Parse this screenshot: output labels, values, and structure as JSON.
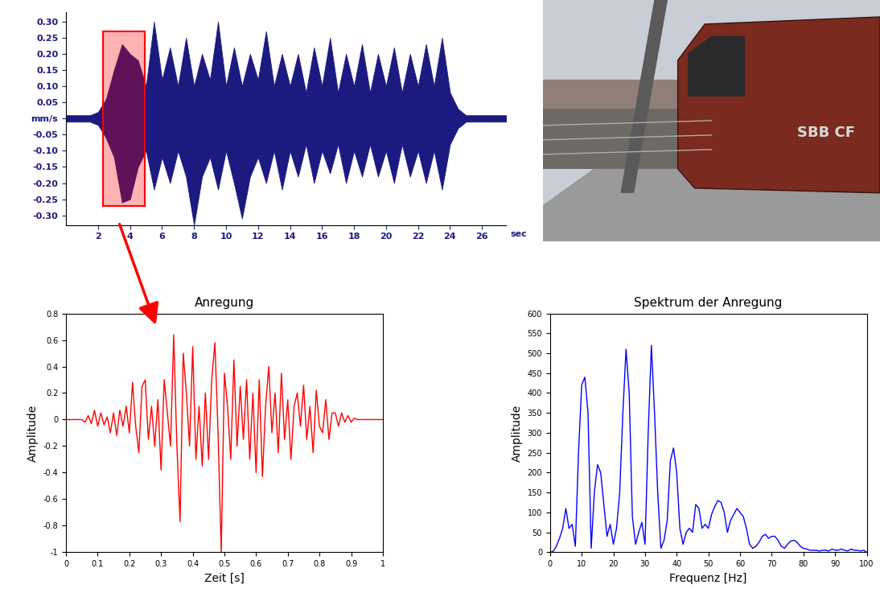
{
  "chart_data": [
    {
      "type": "area",
      "color": "#1a1a80",
      "x": [
        0,
        0.5,
        1,
        1.5,
        2,
        2.5,
        3,
        3.5,
        4,
        4.5,
        5,
        5.5,
        6,
        6.5,
        7,
        7.5,
        8,
        8.5,
        9,
        9.5,
        10,
        10.5,
        11,
        11.5,
        12,
        12.5,
        13,
        13.5,
        14,
        14.5,
        15,
        15.5,
        16,
        16.5,
        17,
        17.5,
        18,
        18.5,
        19,
        19.5,
        20,
        20.5,
        21,
        21.5,
        22,
        22.5,
        23,
        23.5,
        24,
        24.5,
        25,
        25.5,
        26,
        26.5,
        27,
        27.5
      ],
      "values_max": [
        0.01,
        0.01,
        0.01,
        0.01,
        0.02,
        0.06,
        0.15,
        0.23,
        0.2,
        0.18,
        0.1,
        0.3,
        0.12,
        0.22,
        0.1,
        0.25,
        0.1,
        0.2,
        0.12,
        0.3,
        0.1,
        0.22,
        0.1,
        0.2,
        0.12,
        0.27,
        0.1,
        0.2,
        0.1,
        0.2,
        0.08,
        0.22,
        0.1,
        0.25,
        0.08,
        0.2,
        0.1,
        0.23,
        0.08,
        0.2,
        0.1,
        0.22,
        0.08,
        0.2,
        0.1,
        0.23,
        0.1,
        0.25,
        0.08,
        0.03,
        0.01,
        0.01,
        0.01,
        0.01,
        0.01,
        0.01
      ],
      "values_min": [
        -0.01,
        -0.01,
        -0.01,
        -0.01,
        -0.02,
        -0.06,
        -0.12,
        -0.26,
        -0.25,
        -0.15,
        -0.1,
        -0.22,
        -0.12,
        -0.2,
        -0.1,
        -0.18,
        -0.33,
        -0.18,
        -0.12,
        -0.22,
        -0.1,
        -0.2,
        -0.31,
        -0.18,
        -0.12,
        -0.2,
        -0.1,
        -0.22,
        -0.1,
        -0.18,
        -0.08,
        -0.2,
        -0.1,
        -0.17,
        -0.08,
        -0.2,
        -0.1,
        -0.18,
        -0.08,
        -0.18,
        -0.1,
        -0.2,
        -0.08,
        -0.18,
        -0.1,
        -0.2,
        -0.1,
        -0.22,
        -0.08,
        -0.03,
        -0.01,
        -0.01,
        -0.01,
        -0.01,
        -0.01,
        -0.01
      ],
      "xlim": [
        0,
        27.5
      ],
      "xticks": [
        2,
        4,
        6,
        8,
        10,
        12,
        14,
        16,
        18,
        20,
        22,
        24,
        26
      ],
      "x_label": "sec",
      "ylim": [
        -0.33,
        0.33
      ],
      "yticks": [
        {
          "value": 0.3,
          "label": "0.30"
        },
        {
          "value": 0.25,
          "label": "0.25"
        },
        {
          "value": 0.2,
          "label": "0.20"
        },
        {
          "value": 0.15,
          "label": "0.15"
        },
        {
          "value": 0.1,
          "label": "0.10"
        },
        {
          "value": 0.05,
          "label": "0.05"
        },
        {
          "value": 0,
          "label": "mm/s"
        },
        {
          "value": -0.05,
          "label": "-0.05"
        },
        {
          "value": -0.1,
          "label": "-0.10"
        },
        {
          "value": -0.15,
          "label": "-0.15"
        },
        {
          "value": -0.2,
          "label": "-0.20"
        },
        {
          "value": -0.25,
          "label": "-0.25"
        },
        {
          "value": -0.3,
          "label": "-0.30"
        }
      ],
      "highlight": {
        "x": [
          2.3,
          4.9
        ],
        "y": [
          -0.27,
          0.27
        ],
        "color": "#ff0000"
      }
    },
    {
      "type": "line",
      "title": "Anregung",
      "x_label": "Zeit [s]",
      "y_label": "Amplitude",
      "color": "#ff0000",
      "x": [
        0,
        0.01,
        0.02,
        0.03,
        0.04,
        0.05,
        0.06,
        0.07,
        0.08,
        0.09,
        0.1,
        0.11,
        0.12,
        0.13,
        0.14,
        0.15,
        0.16,
        0.17,
        0.18,
        0.19,
        0.2,
        0.21,
        0.22,
        0.23,
        0.24,
        0.25,
        0.26,
        0.27,
        0.28,
        0.29,
        0.3,
        0.31,
        0.32,
        0.33,
        0.34,
        0.35,
        0.36,
        0.37,
        0.38,
        0.39,
        0.4,
        0.41,
        0.42,
        0.43,
        0.44,
        0.45,
        0.46,
        0.47,
        0.48,
        0.49,
        0.5,
        0.51,
        0.52,
        0.53,
        0.54,
        0.55,
        0.56,
        0.57,
        0.58,
        0.59,
        0.6,
        0.61,
        0.62,
        0.63,
        0.64,
        0.65,
        0.66,
        0.67,
        0.68,
        0.69,
        0.7,
        0.71,
        0.72,
        0.73,
        0.74,
        0.75,
        0.76,
        0.77,
        0.78,
        0.79,
        0.8,
        0.81,
        0.82,
        0.83,
        0.84,
        0.85,
        0.86,
        0.87,
        0.88,
        0.89,
        0.9,
        0.91,
        0.92,
        0.93,
        0.94,
        0.95,
        0.96,
        0.97,
        0.98,
        0.99,
        1
      ],
      "values": [
        0,
        0,
        0,
        0,
        0,
        0,
        -0.02,
        0.03,
        -0.03,
        0.07,
        -0.05,
        0.05,
        -0.04,
        0.02,
        -0.1,
        0.05,
        -0.12,
        0.07,
        -0.05,
        0.1,
        -0.1,
        0.28,
        -0.05,
        -0.25,
        0.25,
        0.3,
        -0.15,
        0.1,
        -0.2,
        0.15,
        -0.38,
        0.3,
        0.05,
        -0.2,
        0.64,
        -0.2,
        -0.77,
        0.5,
        0.2,
        -0.2,
        0.55,
        -0.3,
        0.1,
        -0.35,
        0.2,
        -0.3,
        0.3,
        0.58,
        -0.1,
        -1.0,
        0.35,
        0.1,
        -0.3,
        0.45,
        -0.2,
        0.25,
        -0.15,
        0.3,
        -0.3,
        0.2,
        -0.4,
        0.3,
        -0.43,
        0.1,
        0.4,
        -0.1,
        0.2,
        -0.25,
        0.35,
        -0.15,
        0.15,
        -0.3,
        0.1,
        0.2,
        -0.05,
        0.26,
        -0.15,
        0.1,
        -0.25,
        0.22,
        -0.05,
        -0.1,
        0.15,
        -0.15,
        0.05,
        0.05,
        -0.05,
        0.05,
        -0.02,
        0.03,
        -0.02,
        0.01,
        0,
        0,
        0,
        0,
        0,
        0,
        0,
        0,
        0
      ],
      "xlim": [
        0,
        1
      ],
      "xticks": [
        0,
        0.1,
        0.2,
        0.3,
        0.4,
        0.5,
        0.6,
        0.7,
        0.8,
        0.9,
        1
      ],
      "ylim": [
        -1,
        0.8
      ],
      "yticks": [
        -1,
        -0.8,
        -0.6,
        -0.4,
        -0.2,
        0,
        0.2,
        0.4,
        0.6,
        0.8
      ]
    },
    {
      "type": "line",
      "title": "Spektrum der Anregung",
      "x_label": "Frequenz [Hz]",
      "y_label": "Amplitude",
      "color": "#0000ff",
      "x": [
        0,
        1,
        2,
        3,
        4,
        5,
        6,
        7,
        8,
        9,
        10,
        11,
        12,
        13,
        14,
        15,
        16,
        17,
        18,
        19,
        20,
        21,
        22,
        23,
        24,
        25,
        26,
        27,
        28,
        29,
        30,
        31,
        32,
        33,
        34,
        35,
        36,
        37,
        38,
        39,
        40,
        41,
        42,
        43,
        44,
        45,
        46,
        47,
        48,
        49,
        50,
        51,
        52,
        53,
        54,
        55,
        56,
        57,
        58,
        59,
        60,
        61,
        62,
        63,
        64,
        65,
        66,
        67,
        68,
        69,
        70,
        71,
        72,
        73,
        74,
        75,
        76,
        77,
        78,
        79,
        80,
        81,
        82,
        83,
        84,
        85,
        86,
        87,
        88,
        89,
        90,
        91,
        92,
        93,
        94,
        95,
        96,
        97,
        98,
        99,
        100
      ],
      "values": [
        0,
        2,
        15,
        35,
        60,
        110,
        60,
        70,
        15,
        250,
        420,
        440,
        350,
        10,
        150,
        220,
        200,
        120,
        40,
        70,
        20,
        60,
        150,
        350,
        510,
        400,
        90,
        20,
        50,
        75,
        20,
        300,
        520,
        350,
        150,
        10,
        30,
        80,
        230,
        262,
        200,
        60,
        20,
        50,
        60,
        50,
        120,
        110,
        60,
        70,
        60,
        95,
        115,
        130,
        125,
        100,
        50,
        80,
        95,
        110,
        100,
        90,
        60,
        20,
        10,
        15,
        25,
        40,
        45,
        35,
        40,
        40,
        30,
        15,
        10,
        20,
        28,
        30,
        25,
        15,
        10,
        8,
        5,
        5,
        5,
        3,
        5,
        5,
        3,
        8,
        5,
        5,
        8,
        5,
        3,
        8,
        5,
        5,
        3,
        5,
        0
      ],
      "xlim": [
        0,
        100
      ],
      "xticks": [
        0,
        10,
        20,
        30,
        40,
        50,
        60,
        70,
        80,
        90,
        100
      ],
      "ylim": [
        0,
        600
      ],
      "yticks": [
        0,
        50,
        100,
        150,
        200,
        250,
        300,
        350,
        400,
        450,
        500,
        550,
        600
      ]
    }
  ],
  "photo": {
    "text": "SBB CF"
  }
}
